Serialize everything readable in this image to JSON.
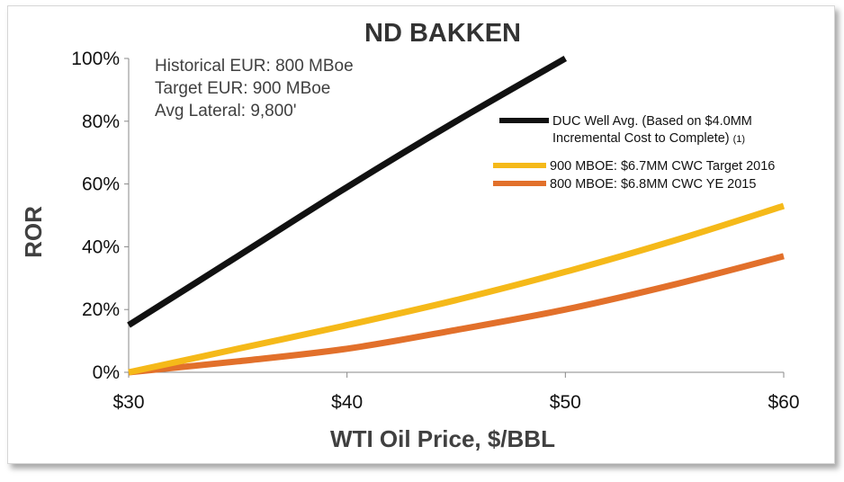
{
  "chart_data": {
    "type": "line",
    "title": "ND BAKKEN",
    "xlabel": "WTI Oil Price, $/BBL",
    "ylabel": "ROR",
    "xlim": [
      30,
      60
    ],
    "ylim": [
      0,
      100
    ],
    "x_ticks": [
      {
        "value": 30,
        "label": "$30"
      },
      {
        "value": 40,
        "label": "$40"
      },
      {
        "value": 50,
        "label": "$50"
      },
      {
        "value": 60,
        "label": "$60"
      }
    ],
    "y_ticks": [
      {
        "value": 0,
        "label": "0%"
      },
      {
        "value": 20,
        "label": "20%"
      },
      {
        "value": 40,
        "label": "40%"
      },
      {
        "value": 60,
        "label": "60%"
      },
      {
        "value": 80,
        "label": "80%"
      },
      {
        "value": 100,
        "label": "100%"
      }
    ],
    "grid": false,
    "annotations": [
      "Historical EUR: 800 MBoe",
      "Target EUR: 900 MBoe",
      "Avg Lateral: 9,800'"
    ],
    "legend_position": "right",
    "series": [
      {
        "name_lines": [
          "DUC Well Avg. (Based on $4.0MM",
          "Incremental Cost to Complete)"
        ],
        "footnote": "(1)",
        "color": "#111111",
        "x": [
          30,
          35,
          40,
          45,
          50
        ],
        "y": [
          15,
          37,
          59,
          80,
          100
        ]
      },
      {
        "name_lines": [
          "900 MBOE: $6.7MM CWC Target 2016"
        ],
        "color": "#F5B919",
        "x": [
          30,
          35,
          40,
          45,
          50,
          55,
          60
        ],
        "y": [
          0,
          7.5,
          15,
          23,
          32,
          42,
          53
        ]
      },
      {
        "name_lines": [
          "800 MBOE: $6.8MM CWC YE 2015"
        ],
        "color": "#E2702B",
        "x": [
          30,
          35,
          40,
          45,
          50,
          55,
          60
        ],
        "y": [
          0,
          3.5,
          7.5,
          13.5,
          20,
          28,
          37
        ]
      }
    ]
  }
}
